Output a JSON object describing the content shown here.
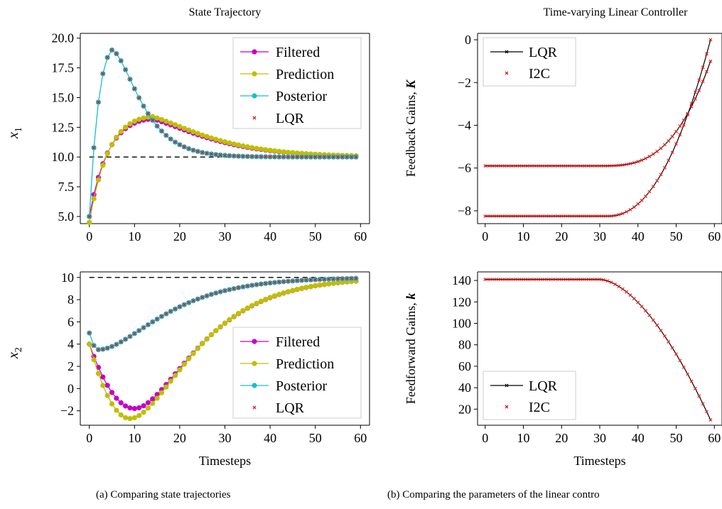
{
  "captions": {
    "left": "(a) Comparing state trajectories",
    "right": "(b) Comparing the parameters of the linear contro"
  },
  "colors": {
    "filtered": "#c400c4",
    "prediction": "#bfbf00",
    "posterior": "#17becf",
    "lqr_marker": "#e41a1c",
    "lqr_line": "#000000",
    "reference": "#000000"
  },
  "chart_data": [
    {
      "id": "state_x1",
      "type": "line",
      "title": "State Trajectory",
      "xlabel": "",
      "ylabel": "x_1",
      "ylabel_display": "x",
      "ylabel_sub": "1",
      "xlim": [
        -2,
        62
      ],
      "ylim": [
        4.4,
        20.4
      ],
      "xticks": [
        0,
        10,
        20,
        30,
        40,
        50,
        60
      ],
      "yticks": [
        5.0,
        7.5,
        10.0,
        12.5,
        15.0,
        17.5,
        20.0
      ],
      "ytick_labels": [
        "5.0",
        "7.5",
        "10.0",
        "12.5",
        "15.0",
        "17.5",
        "20.0"
      ],
      "reference": 10,
      "legend_position": "top-right",
      "series": [
        {
          "name": "Filtered",
          "model": "bump",
          "start": 5.0,
          "end": 10.0,
          "peak": 3.3,
          "peak_t": 14,
          "spread": 9
        },
        {
          "name": "Prediction",
          "model": "bump",
          "start": 4.5,
          "end": 10.0,
          "peak": 3.5,
          "peak_t": 14,
          "spread": 9
        },
        {
          "name": "Posterior",
          "model": "bump",
          "start": 5.0,
          "end": 10.0,
          "peak": 10.2,
          "peak_t": 5,
          "spread": 8
        },
        {
          "name": "LQR",
          "model": "bump",
          "start": 5.0,
          "end": 10.0,
          "peak": 10.2,
          "peak_t": 5,
          "spread": 8
        }
      ]
    },
    {
      "id": "state_x2",
      "type": "line",
      "title": "",
      "xlabel": "Timesteps",
      "ylabel": "x_2",
      "ylabel_display": "x",
      "ylabel_sub": "2",
      "xlim": [
        -2,
        62
      ],
      "ylim": [
        -3.3,
        10.5
      ],
      "xticks": [
        0,
        10,
        20,
        30,
        40,
        50,
        60
      ],
      "yticks": [
        -2,
        0,
        2,
        4,
        6,
        8,
        10
      ],
      "ytick_labels": [
        "−2",
        "0",
        "2",
        "4",
        "6",
        "8",
        "10"
      ],
      "reference": 10,
      "legend_position": "bottom-right",
      "series": [
        {
          "name": "Filtered",
          "model": "dip",
          "start": 4.0,
          "end": 10.0,
          "dip": -1.8,
          "dip_t": 10
        },
        {
          "name": "Prediction",
          "model": "dip",
          "start": 4.0,
          "end": 10.0,
          "dip": -2.7,
          "dip_t": 9
        },
        {
          "name": "Posterior",
          "model": "dip",
          "start": 5.0,
          "end": 10.0,
          "dip": 3.5,
          "dip_t": 2
        },
        {
          "name": "LQR",
          "model": "dip",
          "start": 5.0,
          "end": 10.0,
          "dip": 3.5,
          "dip_t": 2
        }
      ]
    },
    {
      "id": "feedback_gains",
      "type": "line",
      "title": "Time-varying Linear Controller",
      "xlabel": "",
      "ylabel": "Feedback Gains, K",
      "ylabel_display": "Feedback Gains, ",
      "ylabel_bold": "K",
      "xlim": [
        -2,
        62
      ],
      "ylim": [
        -8.6,
        0.3
      ],
      "xticks": [
        0,
        10,
        20,
        30,
        40,
        50,
        60
      ],
      "yticks": [
        -8,
        -6,
        -4,
        -2,
        0
      ],
      "ytick_labels": [
        "−8",
        "−6",
        "−4",
        "−2",
        "0"
      ],
      "legend_position": "top-left",
      "series": [
        {
          "name": "LQR",
          "model": "rise",
          "start": -8.25,
          "end": 0.0,
          "onset": 32,
          "power": 2.2
        },
        {
          "name": "LQR",
          "model": "rise",
          "start": -5.9,
          "end": -1.0,
          "onset": 30,
          "power": 3.0
        }
      ],
      "overlay": {
        "name": "I2C"
      }
    },
    {
      "id": "feedforward_gains",
      "type": "line",
      "title": "",
      "xlabel": "Timesteps",
      "ylabel": "Feedforward Gains, k",
      "ylabel_display": "Feedforward Gains, ",
      "ylabel_bold": "k",
      "xlim": [
        -2,
        62
      ],
      "ylim": [
        5,
        148
      ],
      "xticks": [
        0,
        10,
        20,
        30,
        40,
        50,
        60
      ],
      "yticks": [
        20,
        40,
        60,
        80,
        100,
        120,
        140
      ],
      "ytick_labels": [
        "20",
        "40",
        "60",
        "80",
        "100",
        "120",
        "140"
      ],
      "legend_position": "bottom-left",
      "series": [
        {
          "name": "LQR",
          "model": "fall",
          "start": 141.0,
          "end": 10.0,
          "onset": 30,
          "power": 1.7
        }
      ],
      "overlay": {
        "name": "I2C"
      }
    }
  ]
}
